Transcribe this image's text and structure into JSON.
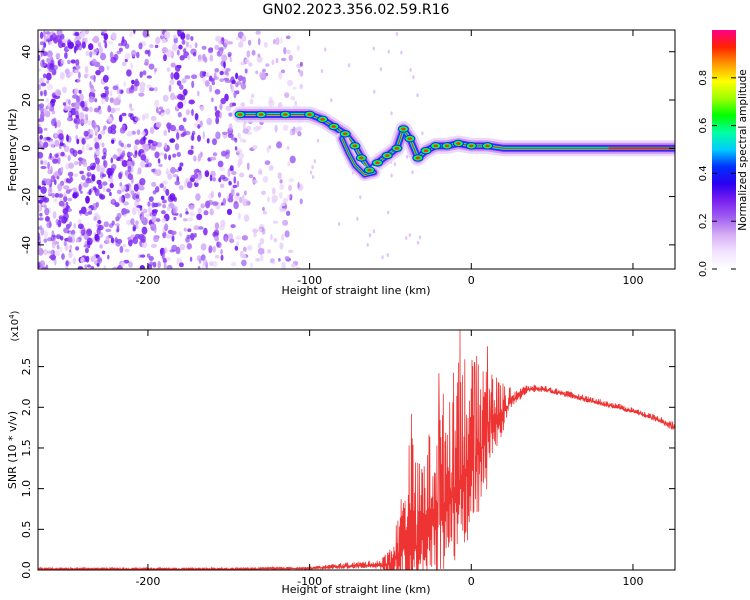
{
  "title": "GN02.2023.356.02.59.R16",
  "colors": {
    "snr_line": "#ee3333",
    "frame": "#000000",
    "colormap_stops": [
      "#ffffff",
      "#f2e3ff",
      "#d7aef5",
      "#a060f0",
      "#7a20f0",
      "#2a00f0",
      "#0030ff",
      "#00ccff",
      "#00ffa0",
      "#00ff00",
      "#a0ff00",
      "#ffff00",
      "#ff9900",
      "#ff2200",
      "#ff0088"
    ]
  },
  "chart_data": [
    {
      "type": "heatmap",
      "xlabel": "Height of straight line (km)",
      "ylabel": "Frequency (Hz)",
      "xlim": [
        -268,
        126
      ],
      "ylim": [
        -50,
        49
      ],
      "x_ticks": [
        "-200",
        "-100",
        "0",
        "100"
      ],
      "y_ticks": [
        "-40",
        "-20",
        "0",
        "20",
        "40"
      ],
      "colorbar": {
        "label": "Normalized spectral amplitude",
        "range": [
          0,
          1
        ],
        "ticks": [
          "0.0",
          "0.2",
          "0.4",
          "0.6",
          "0.8"
        ]
      },
      "ridge": [
        {
          "x": -143,
          "y": 14
        },
        {
          "x": -130,
          "y": 14
        },
        {
          "x": -115,
          "y": 14
        },
        {
          "x": -100,
          "y": 14
        },
        {
          "x": -92,
          "y": 12
        },
        {
          "x": -85,
          "y": 9
        },
        {
          "x": -78,
          "y": 6
        },
        {
          "x": -72,
          "y": 1
        },
        {
          "x": -68,
          "y": -4
        },
        {
          "x": -63,
          "y": -9
        },
        {
          "x": -58,
          "y": -6
        },
        {
          "x": -52,
          "y": -3
        },
        {
          "x": -46,
          "y": 0
        },
        {
          "x": -42,
          "y": 8
        },
        {
          "x": -38,
          "y": 4
        },
        {
          "x": -33,
          "y": -4
        },
        {
          "x": -28,
          "y": -1
        },
        {
          "x": -22,
          "y": 1
        },
        {
          "x": -15,
          "y": 1
        },
        {
          "x": -8,
          "y": 2
        },
        {
          "x": 0,
          "y": 1
        },
        {
          "x": 10,
          "y": 1
        },
        {
          "x": 20,
          "y": 0
        },
        {
          "x": 40,
          "y": 0
        },
        {
          "x": 60,
          "y": 0
        },
        {
          "x": 80,
          "y": 0
        },
        {
          "x": 100,
          "y": 0
        },
        {
          "x": 126,
          "y": 0
        }
      ],
      "side_branch": [
        {
          "x": -80,
          "y": 4
        },
        {
          "x": -76,
          "y": -2
        },
        {
          "x": -72,
          "y": -7
        },
        {
          "x": -66,
          "y": -11
        },
        {
          "x": -60,
          "y": -10
        }
      ]
    },
    {
      "type": "line",
      "xlabel": "Height of straight line (km)",
      "ylabel": "SNR (10 * v/v)",
      "y_multiplier": "(x10",
      "y_multiplier_exponent": "4",
      "y_multiplier_close": ")",
      "xlim": [
        -268,
        126
      ],
      "ylim": [
        0,
        2.95
      ],
      "x_ticks": [
        "-200",
        "-100",
        "0",
        "100"
      ],
      "y_ticks": [
        "0.0",
        "0.5",
        "1.0",
        "1.5",
        "2.0",
        "2.5"
      ],
      "envelope": [
        {
          "x": -268,
          "base": 0.01,
          "amp": 0.02
        },
        {
          "x": -150,
          "base": 0.01,
          "amp": 0.02
        },
        {
          "x": -100,
          "base": 0.02,
          "amp": 0.02
        },
        {
          "x": -80,
          "base": 0.04,
          "amp": 0.05
        },
        {
          "x": -60,
          "base": 0.06,
          "amp": 0.06
        },
        {
          "x": -55,
          "base": 0.05,
          "amp": 0.1
        },
        {
          "x": -48,
          "base": 0.1,
          "amp": 0.3
        },
        {
          "x": -42,
          "base": 0.3,
          "amp": 0.8
        },
        {
          "x": -38,
          "base": 0.4,
          "amp": 1.5
        },
        {
          "x": -34,
          "base": 0.3,
          "amp": 1.0
        },
        {
          "x": -28,
          "base": 0.5,
          "amp": 1.1
        },
        {
          "x": -20,
          "base": 0.7,
          "amp": 1.4
        },
        {
          "x": -10,
          "base": 1.0,
          "amp": 1.5
        },
        {
          "x": -7,
          "base": 1.1,
          "amp": 1.8
        },
        {
          "x": 0,
          "base": 1.3,
          "amp": 1.3
        },
        {
          "x": 10,
          "base": 1.6,
          "amp": 1.1
        },
        {
          "x": 15,
          "base": 1.8,
          "amp": 0.6
        },
        {
          "x": 25,
          "base": 2.08,
          "amp": 0.15
        },
        {
          "x": 35,
          "base": 2.22,
          "amp": 0.06
        },
        {
          "x": 45,
          "base": 2.22,
          "amp": 0.05
        },
        {
          "x": 60,
          "base": 2.15,
          "amp": 0.05
        },
        {
          "x": 80,
          "base": 2.05,
          "amp": 0.05
        },
        {
          "x": 100,
          "base": 1.95,
          "amp": 0.05
        },
        {
          "x": 115,
          "base": 1.85,
          "amp": 0.05
        },
        {
          "x": 126,
          "base": 1.75,
          "amp": 0.08
        }
      ],
      "spikes": [
        {
          "x": -37,
          "y": 1.92
        },
        {
          "x": -20,
          "y": 2.42
        },
        {
          "x": -8,
          "y": 2.55
        },
        {
          "x": -7,
          "y": 2.95
        },
        {
          "x": 2,
          "y": 2.55
        },
        {
          "x": 10,
          "y": 2.75
        },
        {
          "x": 12,
          "y": 2.0
        }
      ]
    }
  ]
}
